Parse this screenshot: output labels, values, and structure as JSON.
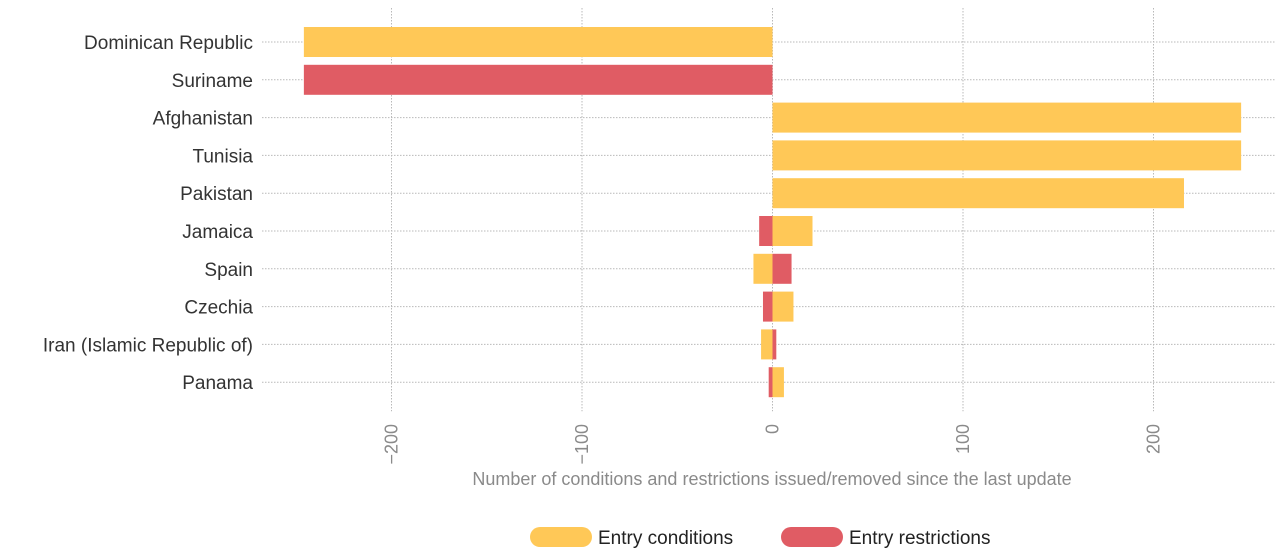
{
  "chart_data": {
    "type": "bar",
    "orientation": "horizontal",
    "xlabel": "Number of conditions and restrictions issued/removed since the last update",
    "ylabel": "",
    "xlim": [
      -262,
      264
    ],
    "xticks": [
      -200,
      -100,
      0,
      100,
      200
    ],
    "xtick_labels": [
      "−200",
      "−100",
      "0",
      "100",
      "200"
    ],
    "grid": true,
    "legend_position": "bottom",
    "categories": [
      "Dominican Republic",
      "Suriname",
      "Afghanistan",
      "Tunisia",
      "Pakistan",
      "Jamaica",
      "Spain",
      "Czechia",
      "Iran (Islamic Republic of)",
      "Panama"
    ],
    "series": [
      {
        "name": "Entry conditions",
        "color": "#ffc857",
        "values": [
          -246,
          0,
          246,
          246,
          216,
          21,
          -10,
          11,
          -6,
          6
        ]
      },
      {
        "name": "Entry restrictions",
        "color": "#e05c64",
        "values": [
          0,
          -246,
          0,
          0,
          0,
          -7,
          10,
          -5,
          2,
          -2
        ]
      }
    ]
  }
}
